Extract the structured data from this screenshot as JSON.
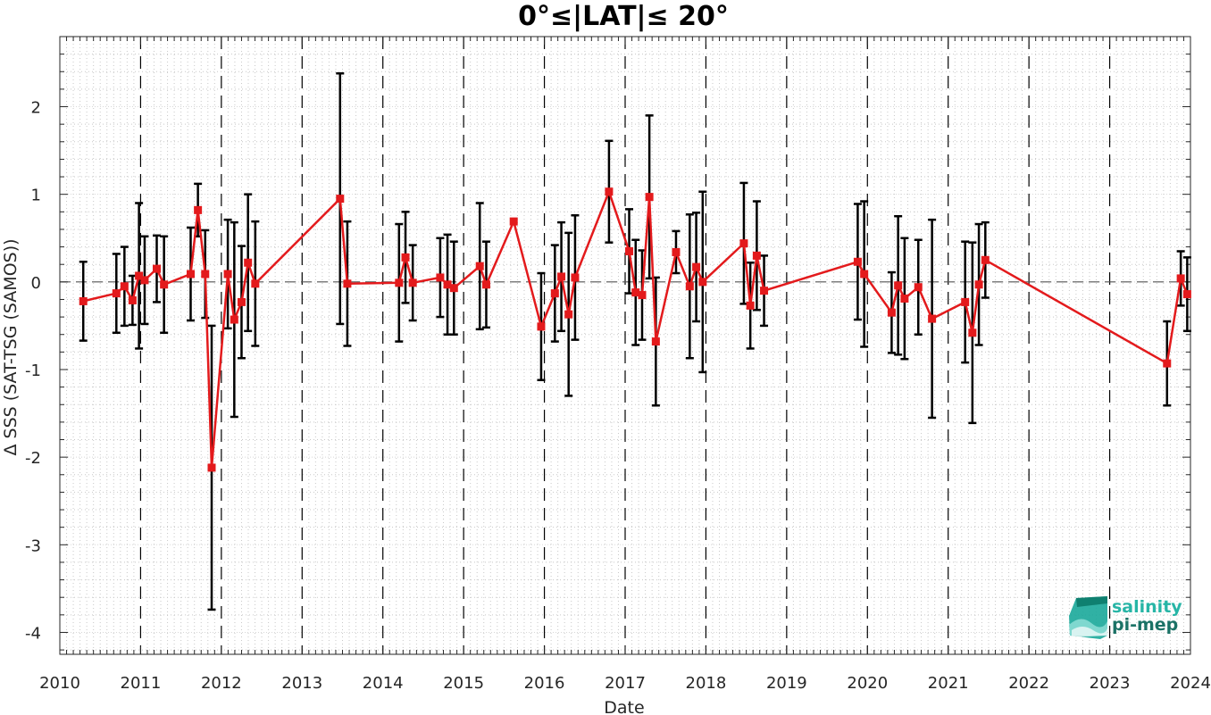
{
  "chart_data": {
    "type": "line",
    "title": "0°≤|LAT|≤ 20°",
    "xlabel": "Date",
    "ylabel": "Δ SSS (SAT-TSG (SAMOS))",
    "xlim": [
      2010,
      2024
    ],
    "ylim": [
      -4.25,
      2.8
    ],
    "x_ticks": [
      "2010",
      "2011",
      "2012",
      "2013",
      "2014",
      "2015",
      "2016",
      "2017",
      "2018",
      "2019",
      "2020",
      "2021",
      "2022",
      "2023",
      "2024"
    ],
    "y_ticks": [
      "2",
      "1",
      "0",
      "-1",
      "-2",
      "-3",
      "-4"
    ],
    "grid": "minor-dotted",
    "year_boundaries_dashed": true,
    "zero_reference_line": true,
    "colors": {
      "series": "#e31a1c",
      "errorbar": "#000000",
      "grid": "#c8c8c8"
    },
    "series": [
      {
        "points": [
          [
            2010.29,
            -0.22,
            0.45
          ],
          [
            2010.7,
            -0.13,
            0.45
          ],
          [
            2010.8,
            -0.05,
            0.45
          ],
          [
            2010.9,
            -0.21,
            0.28
          ],
          [
            2010.98,
            0.07,
            0.83
          ],
          [
            2011.05,
            0.02,
            0.5
          ],
          [
            2011.2,
            0.15,
            0.38
          ],
          [
            2011.29,
            -0.03,
            0.55
          ],
          [
            2011.62,
            0.09,
            0.53
          ],
          [
            2011.71,
            0.82,
            0.3
          ],
          [
            2011.8,
            0.09,
            0.5
          ],
          [
            2011.88,
            -2.12,
            1.62
          ],
          [
            2012.08,
            0.09,
            0.62
          ],
          [
            2012.16,
            -0.43,
            1.11
          ],
          [
            2012.25,
            -0.23,
            0.64
          ],
          [
            2012.33,
            0.22,
            0.78
          ],
          [
            2012.42,
            -0.02,
            0.71
          ],
          [
            2013.47,
            0.95,
            1.43
          ],
          [
            2013.56,
            -0.02,
            0.71
          ],
          [
            2014.2,
            -0.01,
            0.67
          ],
          [
            2014.28,
            0.28,
            0.52
          ],
          [
            2014.37,
            -0.01,
            0.43
          ],
          [
            2014.71,
            0.05,
            0.45
          ],
          [
            2014.8,
            -0.03,
            0.57
          ],
          [
            2014.88,
            -0.07,
            0.53
          ],
          [
            2015.2,
            0.18,
            0.72
          ],
          [
            2015.28,
            -0.03,
            0.49
          ],
          [
            2015.62,
            0.69,
            0.0
          ],
          [
            2015.96,
            -0.51,
            0.61
          ],
          [
            2016.13,
            -0.13,
            0.55
          ],
          [
            2016.21,
            0.06,
            0.62
          ],
          [
            2016.3,
            -0.37,
            0.93
          ],
          [
            2016.38,
            0.05,
            0.71
          ],
          [
            2016.8,
            1.03,
            0.58
          ],
          [
            2017.05,
            0.35,
            0.48
          ],
          [
            2017.13,
            -0.12,
            0.6
          ],
          [
            2017.21,
            -0.15,
            0.51
          ],
          [
            2017.3,
            0.97,
            0.93
          ],
          [
            2017.38,
            -0.68,
            0.73
          ],
          [
            2017.63,
            0.34,
            0.24
          ],
          [
            2017.8,
            -0.05,
            0.82
          ],
          [
            2017.88,
            0.17,
            0.62
          ],
          [
            2017.96,
            0.0,
            1.03
          ],
          [
            2018.47,
            0.44,
            0.69
          ],
          [
            2018.55,
            -0.27,
            0.49
          ],
          [
            2018.63,
            0.3,
            0.62
          ],
          [
            2018.72,
            -0.1,
            0.4
          ],
          [
            2019.88,
            0.23,
            0.66
          ],
          [
            2019.96,
            0.09,
            0.83
          ],
          [
            2020.3,
            -0.35,
            0.46
          ],
          [
            2020.38,
            -0.04,
            0.79
          ],
          [
            2020.46,
            -0.19,
            0.69
          ],
          [
            2020.63,
            -0.06,
            0.54
          ],
          [
            2020.8,
            -0.42,
            1.13
          ],
          [
            2021.21,
            -0.23,
            0.69
          ],
          [
            2021.3,
            -0.58,
            1.03
          ],
          [
            2021.38,
            -0.03,
            0.69
          ],
          [
            2021.46,
            0.25,
            0.43
          ],
          [
            2023.71,
            -0.93,
            0.48
          ],
          [
            2023.88,
            0.04,
            0.31
          ],
          [
            2023.96,
            -0.14,
            0.42
          ]
        ]
      }
    ]
  },
  "logo": {
    "line1": "salinity",
    "line2": "pi-mep"
  }
}
